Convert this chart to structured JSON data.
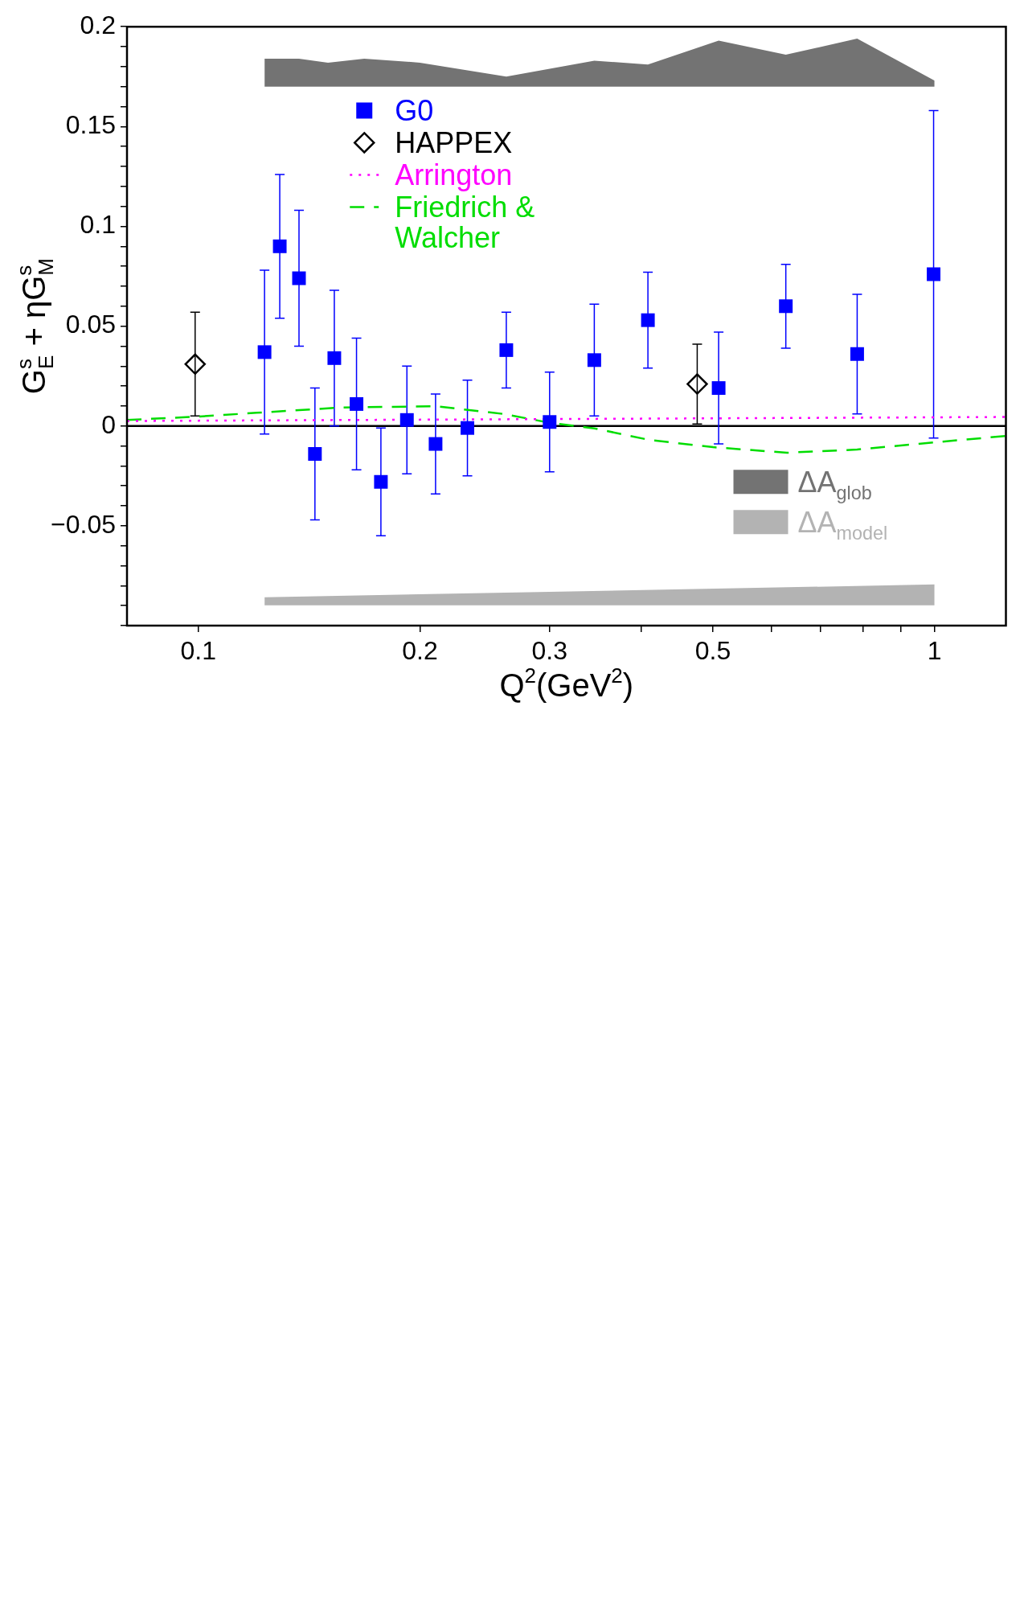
{
  "chart_data": {
    "type": "scatter",
    "xlabel": "Q$^{2}$(GeV$^{2}$)",
    "ylabel": "G$^{s}$$_{E}$ + ηG$^{s}$$_{M}$",
    "log": "x",
    "grid": false,
    "legend": "top",
    "xlim": [
      0.08,
      1.25
    ],
    "xticks": [
      0.1,
      0.2,
      0.3,
      {
        "value": 0.4,
        "label": null
      },
      0.5,
      {
        "value": 0.6,
        "label": null
      },
      {
        "value": 0.7,
        "label": null
      },
      {
        "value": 0.8,
        "label": null
      },
      {
        "value": 0.9,
        "label": null
      },
      1
    ],
    "ylim": [
      -0.1,
      0.2
    ],
    "yticks": [
      {
        "value": -0.1,
        "label": null
      },
      {
        "value": -0.09,
        "label": null
      },
      {
        "value": -0.08,
        "label": null
      },
      {
        "value": -0.07,
        "label": null
      },
      {
        "value": -0.06,
        "label": null
      },
      {
        "value": -0.05,
        "label": "−0.05"
      },
      {
        "value": -0.04,
        "label": null
      },
      {
        "value": -0.03,
        "label": null
      },
      {
        "value": -0.02,
        "label": null
      },
      {
        "value": -0.01,
        "label": null
      },
      0,
      {
        "value": 0.01,
        "label": null
      },
      {
        "value": 0.02,
        "label": null
      },
      {
        "value": 0.03,
        "label": null
      },
      {
        "value": 0.04,
        "label": null
      },
      0.05,
      {
        "value": 0.06,
        "label": null
      },
      {
        "value": 0.07,
        "label": null
      },
      {
        "value": 0.08,
        "label": null
      },
      {
        "value": 0.09,
        "label": null
      },
      0.1,
      {
        "value": 0.11,
        "label": null
      },
      {
        "value": 0.12,
        "label": null
      },
      {
        "value": 0.13,
        "label": null
      },
      {
        "value": 0.14,
        "label": null
      },
      0.15,
      {
        "value": 0.16,
        "label": null
      },
      {
        "value": 0.17,
        "label": null
      },
      {
        "value": 0.18,
        "label": null
      },
      {
        "value": 0.19,
        "label": null
      },
      0.2
    ],
    "ref_lines": [
      {
        "axis": "y",
        "value": 0,
        "color": "#000000",
        "line_style": "solid"
      }
    ],
    "series": [
      {
        "name": "G0",
        "type": "scatter",
        "marker": "square",
        "color": "#0000ff",
        "x": [
          0.123,
          0.129,
          0.137,
          0.144,
          0.153,
          0.164,
          0.177,
          0.192,
          0.21,
          0.232,
          0.262,
          0.3,
          0.345,
          0.408,
          0.509,
          0.628,
          0.785,
          0.997
        ],
        "values": [
          0.037,
          0.09,
          0.074,
          -0.014,
          0.034,
          0.011,
          -0.028,
          0.003,
          -0.009,
          -0.001,
          0.038,
          0.002,
          0.033,
          0.053,
          0.019,
          0.06,
          0.036,
          0.076
        ],
        "errors": [
          0.041,
          0.036,
          0.034,
          0.033,
          0.034,
          0.033,
          0.027,
          0.027,
          0.025,
          0.024,
          0.019,
          0.025,
          0.028,
          0.024,
          0.028,
          0.021,
          0.03,
          0.082
        ]
      },
      {
        "name": "HAPPEX",
        "type": "scatter",
        "marker": "diamond",
        "color": "#000000",
        "x": [
          0.099,
          0.476
        ],
        "values": [
          0.031,
          0.021
        ],
        "errors": [
          0.026,
          0.02
        ]
      },
      {
        "name": "Arrington",
        "type": "line",
        "line_style": "dotted",
        "marker": "none",
        "color": "#ff00ff",
        "x": [
          0.08,
          1.25
        ],
        "values": [
          0.0025,
          0.0045
        ]
      },
      {
        "name": "Friedrich & Walcher",
        "type": "line",
        "line_style": "dashed",
        "marker": "none",
        "color": "#00dd00",
        "x": [
          0.08,
          0.1,
          0.12,
          0.155,
          0.21,
          0.26,
          0.3,
          0.345,
          0.41,
          0.5,
          0.63,
          0.785,
          1.0,
          1.25
        ],
        "values": [
          0.003,
          0.0047,
          0.0066,
          0.0092,
          0.0099,
          0.006,
          0.0016,
          -0.0012,
          -0.007,
          -0.0106,
          -0.0134,
          -0.0118,
          -0.0082,
          -0.005
        ]
      },
      {
        "name": "ΔA$_{glob}$",
        "type": "area",
        "color": "#737373",
        "x": [
          0.123,
          0.137,
          0.15,
          0.168,
          0.2,
          0.262,
          0.345,
          0.408,
          0.509,
          0.628,
          0.785,
          1.0
        ],
        "values": [
          null,
          null,
          null,
          null,
          null,
          null,
          null,
          null,
          null,
          null,
          null,
          null
        ],
        "lower": [
          0.17,
          0.17,
          0.17,
          0.17,
          0.17,
          0.17,
          0.17,
          0.17,
          0.17,
          0.17,
          0.17,
          0.17
        ],
        "upper": [
          0.184,
          0.184,
          0.182,
          0.184,
          0.182,
          0.175,
          0.183,
          0.181,
          0.193,
          0.186,
          0.194,
          0.173
        ]
      },
      {
        "name": "ΔA$_{model}$",
        "type": "area",
        "color": "#b3b3b3",
        "x": [
          0.123,
          1.0
        ],
        "values": [
          null,
          null
        ],
        "lower": [
          -0.0898,
          -0.0898
        ],
        "upper": [
          -0.0858,
          -0.0794
        ]
      }
    ]
  }
}
